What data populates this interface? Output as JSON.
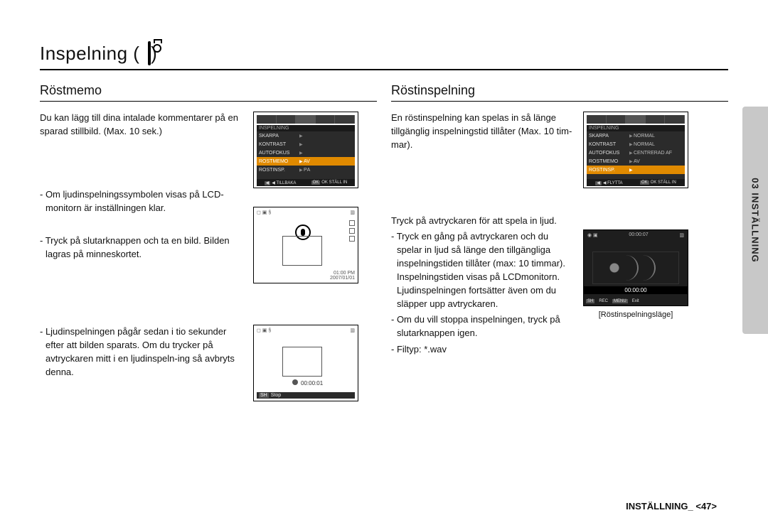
{
  "title": "Inspelning (",
  "title_close": ")",
  "left": {
    "heading": "Röstmemo",
    "intro": "Du kan lägg till dina intalade kommentarer på en sparad stillbild. (Max. 10 sek.)",
    "items": [
      "- Om ljudinspelningssymbolen visas på LCD-monitorn är inställningen klar.",
      "- Tryck på slutarknappen och ta en bild. Bilden lagras på minneskortet.",
      "- Ljudinspelningen pågår sedan i tio sekunder efter att bilden sparats. Om du trycker på avtryckaren mitt i en ljudinspeln-ing så avbryts denna."
    ],
    "menu": {
      "section": "INSPELNING",
      "rows": [
        {
          "l": "SKÄRPA",
          "r": ""
        },
        {
          "l": "KONTRAST",
          "r": ""
        },
        {
          "l": "AUTOFOKUS",
          "r": ""
        },
        {
          "l": "RÖSTMEMO",
          "r": "AV",
          "hl": true
        },
        {
          "l": "RÖSTINSP.",
          "r": "PÅ"
        }
      ],
      "foot_l": "◀  TILLBAKA",
      "foot_r": "OK  STÄLL IN"
    },
    "lcd_time": "01:00 PM",
    "lcd_date": "2007/01/01",
    "rec_timer": "00:00:01",
    "rec_sh": "SH",
    "rec_stop": "Stop"
  },
  "right": {
    "heading": "Röstinspelning",
    "intro": "En röstinspelning kan spelas in så länge tillgänglig inspelningstid tillåter (Max. 10 tim-mar).",
    "body_lead": "Tryck på avtryckaren för att spela in ljud.",
    "items": [
      "- Tryck en gång på avtryckaren och du spelar in ljud så länge den tillgängliga inspelningstiden tillåter (max: 10 timmar). Inspelningstiden visas på LCDmonitorn. Ljudinspelningen fortsätter även om du släpper upp avtryckaren.",
      "- Om du vill stoppa inspelningen, tryck på slutarknappen igen.",
      "- Filtyp: *.wav"
    ],
    "menu": {
      "section": "INSPELNING",
      "rows": [
        {
          "l": "SKÄRPA",
          "r": "NORMAL"
        },
        {
          "l": "KONTRAST",
          "r": "NORMAL"
        },
        {
          "l": "AUTOFOKUS",
          "r": "CENTRERAD AF"
        },
        {
          "l": "RÖSTMEMO",
          "r": "AV"
        },
        {
          "l": "RÖSTINSP.",
          "r": "",
          "hl": true
        }
      ],
      "foot_l": "◀  FLYTTA",
      "foot_r": "OK  STÄLL IN"
    },
    "dark_timer_top": "00:00:07",
    "dark_timer_bot": "00:00:00",
    "dark_foot": [
      "SH",
      "REC",
      "MENU",
      "Exit"
    ],
    "caption": "[Röstinspelningsläge]"
  },
  "sidetab": "03 INSTÄLLNING",
  "footer": "INSTÄLLNING_ <47>"
}
